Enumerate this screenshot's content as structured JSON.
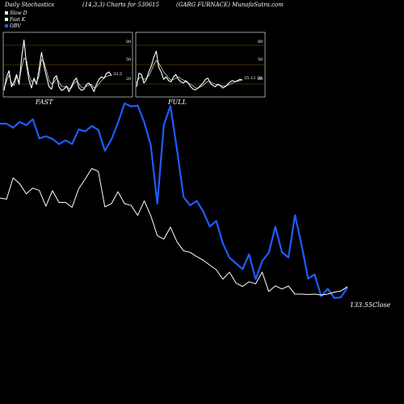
{
  "header": {
    "title": "Daily Stochastics",
    "params": "(14,3,3) Charts for 530615",
    "company": "(GARG FURNACE) MunafaSutra.com"
  },
  "legend": [
    {
      "label": "Slow  D",
      "color": "#ffffff"
    },
    {
      "label": "Fast K",
      "color": "#ffffff"
    },
    {
      "label": "OBV",
      "color": "#1f5cff"
    }
  ],
  "colors": {
    "background": "#000000",
    "obv": "#1f5cff",
    "price": "#ffffff",
    "level_line": "#8a5a00"
  },
  "chart_data": [
    {
      "type": "line",
      "panel": "FAST",
      "title": "FAST",
      "ylim": [
        0,
        100
      ],
      "levels": [
        20,
        50,
        80
      ],
      "tick_labels": [
        "80",
        "50",
        "20"
      ],
      "value_label": "32.5",
      "series": [
        {
          "name": "Slow  D",
          "values": [
            12,
            23,
            33,
            20,
            16,
            30,
            22,
            45,
            61,
            57,
            34,
            22,
            25,
            21,
            31,
            58,
            54,
            40,
            24,
            19,
            21,
            28,
            22,
            15,
            14,
            15,
            11,
            12,
            20,
            23,
            19,
            13,
            12,
            15,
            17,
            18,
            12,
            14,
            19,
            24,
            28,
            31,
            32,
            33
          ]
        },
        {
          "name": "Fast K",
          "values": [
            8,
            30,
            40,
            14,
            22,
            34,
            18,
            60,
            90,
            50,
            25,
            12,
            28,
            18,
            42,
            70,
            48,
            30,
            14,
            10,
            28,
            32,
            14,
            8,
            10,
            15,
            6,
            15,
            24,
            28,
            12,
            8,
            10,
            18,
            20,
            14,
            6,
            18,
            26,
            30,
            28,
            36,
            38,
            32
          ]
        }
      ]
    },
    {
      "type": "line",
      "panel": "FULL",
      "title": "FULL",
      "ylim": [
        0,
        100
      ],
      "levels": [
        20,
        50,
        80
      ],
      "tick_labels": [
        "80",
        "50",
        "20"
      ],
      "value_label": "25.12",
      "value_label2": "20",
      "series": [
        {
          "name": "Slow  D",
          "values": [
            20,
            28,
            30,
            26,
            28,
            32,
            40,
            50,
            57,
            52,
            46,
            38,
            34,
            28,
            25,
            26,
            28,
            30,
            27,
            25,
            22,
            20,
            18,
            15,
            12,
            12,
            14,
            16,
            20,
            23,
            22,
            20,
            18,
            17,
            16,
            15,
            15,
            16,
            18,
            20,
            22,
            23,
            24,
            25
          ]
        },
        {
          "name": "Fast K",
          "values": [
            14,
            36,
            34,
            20,
            26,
            38,
            48,
            62,
            72,
            46,
            38,
            26,
            30,
            24,
            22,
            30,
            34,
            26,
            22,
            20,
            24,
            20,
            14,
            10,
            9,
            12,
            16,
            20,
            26,
            28,
            20,
            16,
            14,
            18,
            16,
            12,
            14,
            18,
            22,
            24,
            22,
            24,
            26,
            25
          ]
        }
      ]
    },
    {
      "type": "line",
      "panel": "price",
      "series": [
        {
          "name": "OBV",
          "values": [
            0.905,
            0.905,
            0.886,
            0.913,
            0.898,
            0.926,
            0.836,
            0.846,
            0.834,
            0.809,
            0.827,
            0.81,
            0.878,
            0.869,
            0.894,
            0.876,
            0.778,
            0.831,
            0.91,
            1.0,
            0.986,
            0.99,
            0.912,
            0.804,
            0.53,
            0.9,
            0.988,
            0.782,
            0.561,
            0.522,
            0.543,
            0.494,
            0.423,
            0.449,
            0.344,
            0.277,
            0.25,
            0.223,
            0.293,
            0.176,
            0.261,
            0.3,
            0.422,
            0.303,
            0.278,
            0.476,
            0.337,
            0.179,
            0.198,
            0.096,
            0.131,
            0.088,
            0.091,
            0.138
          ]
        },
        {
          "name": "Close",
          "values": [
            0.557,
            0.551,
            0.651,
            0.624,
            0.576,
            0.603,
            0.592,
            0.518,
            0.591,
            0.536,
            0.536,
            0.513,
            0.6,
            0.646,
            0.695,
            0.681,
            0.515,
            0.53,
            0.586,
            0.53,
            0.522,
            0.475,
            0.543,
            0.474,
            0.38,
            0.364,
            0.42,
            0.351,
            0.309,
            0.302,
            0.282,
            0.265,
            0.242,
            0.22,
            0.176,
            0.209,
            0.158,
            0.142,
            0.164,
            0.154,
            0.209,
            0.118,
            0.145,
            0.13,
            0.144,
            0.106,
            0.106,
            0.104,
            0.106,
            0.102,
            0.106,
            0.115,
            0.121,
            0.141
          ]
        }
      ],
      "close_label": "133.55Close"
    }
  ]
}
